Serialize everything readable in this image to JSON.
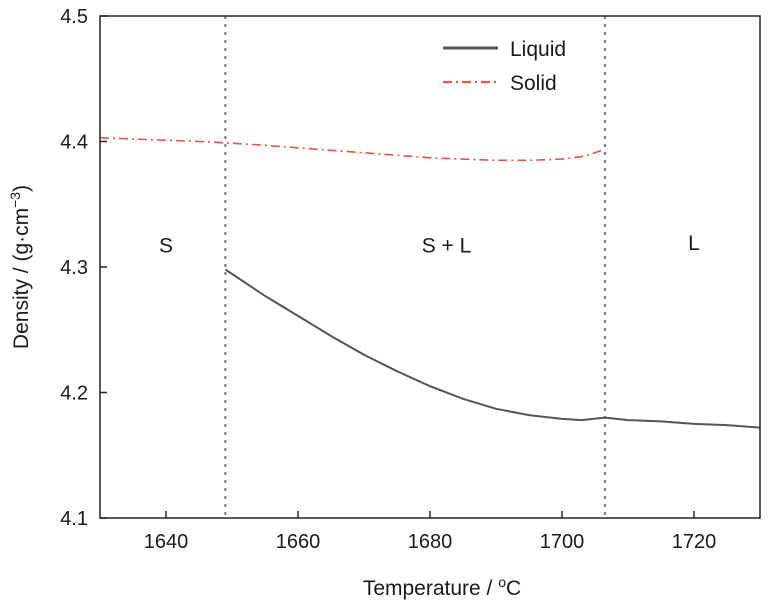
{
  "chart_data": {
    "type": "line",
    "xlabel_main": "Temperature / ",
    "xlabel_sup": "o",
    "xlabel_unit": "C",
    "ylabel_main": "Density / (g·cm",
    "ylabel_sup": "−3",
    "ylabel_end": ")",
    "xlim": [
      1630,
      1730
    ],
    "ylim": [
      4.1,
      4.5
    ],
    "xticks": [
      1640,
      1660,
      1680,
      1700,
      1720
    ],
    "yticks": [
      "4.1",
      "4.2",
      "4.3",
      "4.4",
      "4.5"
    ],
    "grid": false,
    "legend_position": "top-center",
    "vlines": [
      1649,
      1706.5
    ],
    "regions": [
      {
        "label": "S",
        "x": 1640,
        "y": 4.317
      },
      {
        "label": "S + L",
        "x": 1682.5,
        "y": 4.317
      },
      {
        "label": "L",
        "x": 1720,
        "y": 4.319
      }
    ],
    "series": [
      {
        "name": "Liquid",
        "color": "#555555",
        "style": "solid",
        "x": [
          1649,
          1655,
          1660,
          1665,
          1670,
          1675,
          1680,
          1685,
          1690,
          1695,
          1700,
          1703,
          1706.5,
          1710,
          1715,
          1720,
          1725,
          1730
        ],
        "y": [
          4.298,
          4.277,
          4.261,
          4.245,
          4.23,
          4.217,
          4.205,
          4.195,
          4.187,
          4.182,
          4.179,
          4.178,
          4.18,
          4.178,
          4.177,
          4.175,
          4.174,
          4.172
        ]
      },
      {
        "name": "Solid",
        "color": "#e05a43",
        "style": "dashdot",
        "x": [
          1630,
          1635,
          1640,
          1645,
          1649,
          1655,
          1660,
          1665,
          1670,
          1675,
          1680,
          1685,
          1690,
          1695,
          1700,
          1703,
          1705,
          1706.5
        ],
        "y": [
          4.403,
          4.402,
          4.401,
          4.4,
          4.399,
          4.397,
          4.395,
          4.393,
          4.391,
          4.389,
          4.387,
          4.386,
          4.385,
          4.385,
          4.386,
          4.388,
          4.391,
          4.394
        ]
      }
    ]
  }
}
